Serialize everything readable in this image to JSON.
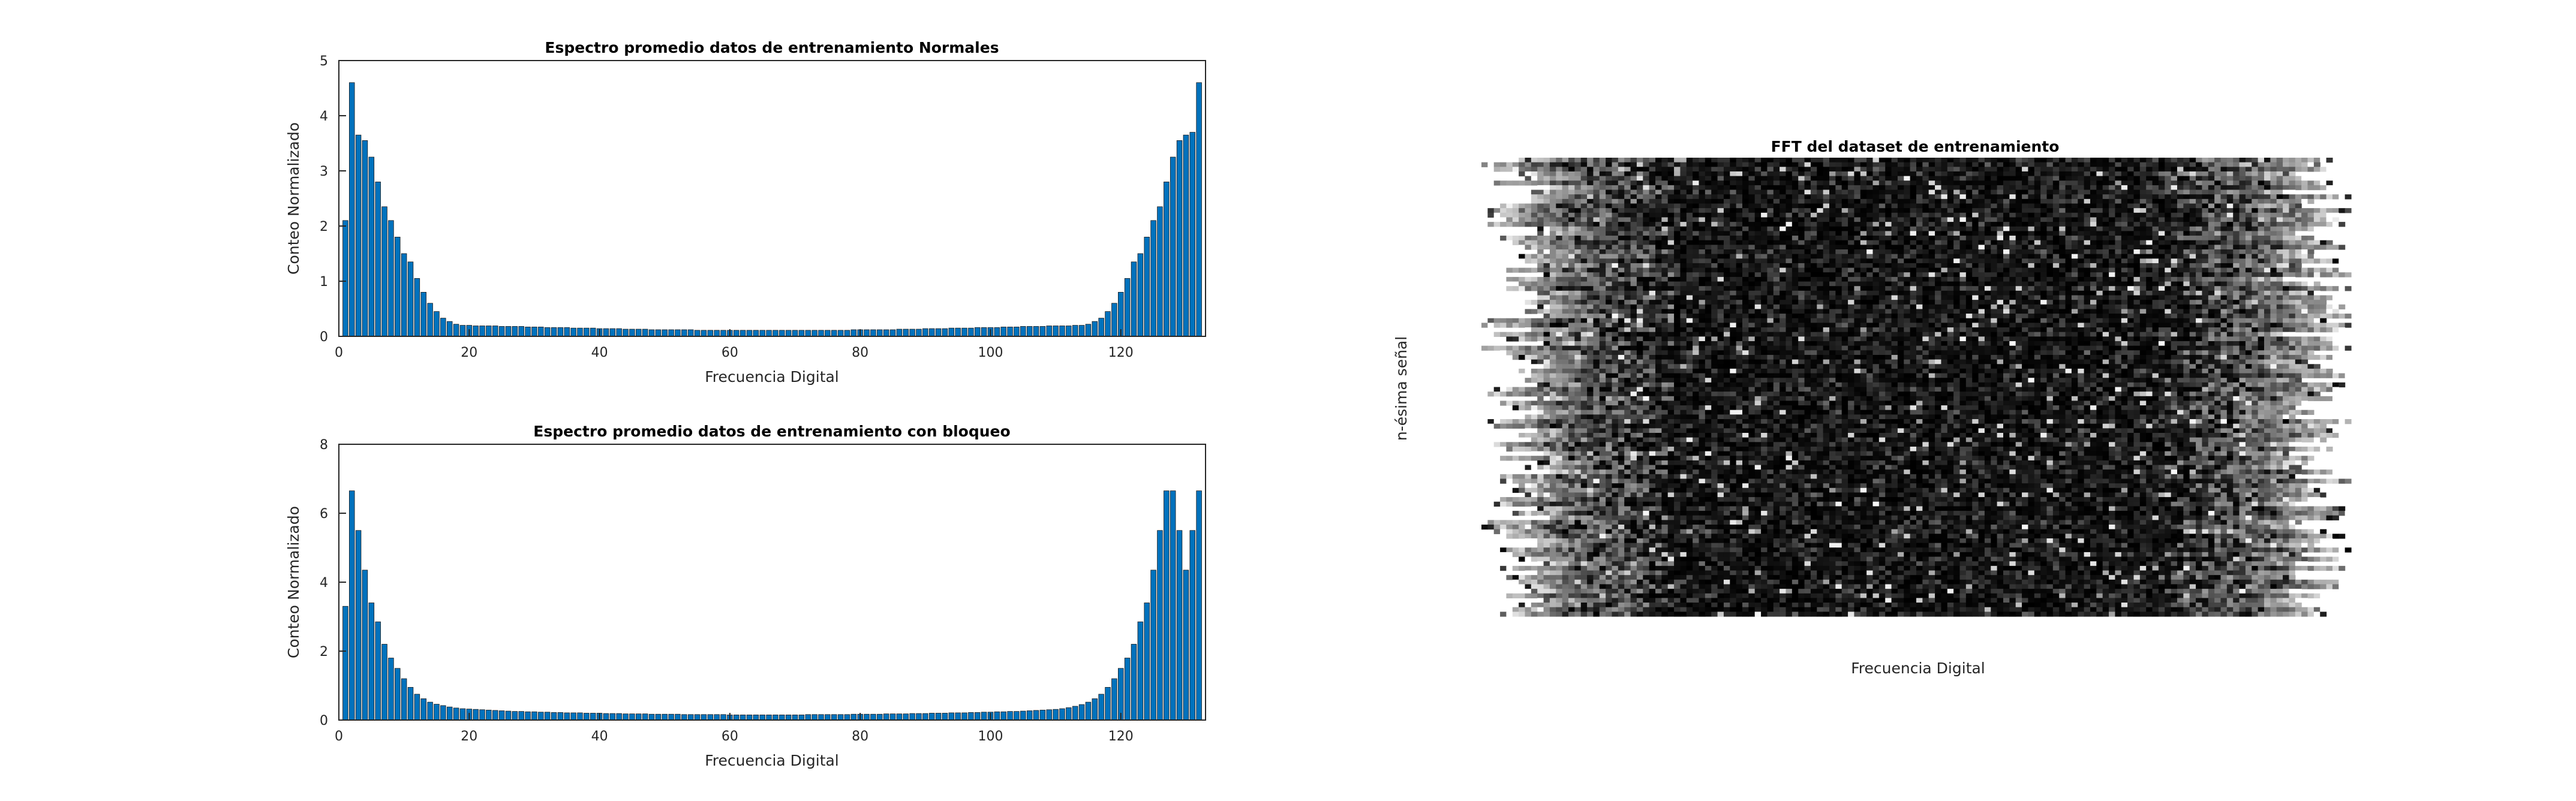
{
  "chart_data": [
    {
      "type": "bar",
      "title": "Espectro promedio datos de entrenamiento Normales",
      "xlabel": "Frecuencia Digital",
      "ylabel": "Conteo Normalizado",
      "xlim": [
        0,
        133
      ],
      "ylim": [
        0,
        5
      ],
      "xticks": [
        0,
        20,
        40,
        60,
        80,
        100,
        120
      ],
      "yticks": [
        0,
        1,
        2,
        3,
        4,
        5
      ],
      "bar_color": "#0072BD",
      "x": [
        1,
        2,
        3,
        4,
        5,
        6,
        7,
        8,
        9,
        10,
        11,
        12,
        13,
        14,
        15,
        16,
        17,
        18,
        19,
        20,
        21,
        22,
        23,
        24,
        25,
        26,
        27,
        28,
        29,
        30,
        31,
        32,
        33,
        34,
        35,
        36,
        37,
        38,
        39,
        40,
        41,
        42,
        43,
        44,
        45,
        46,
        47,
        48,
        49,
        50,
        51,
        52,
        53,
        54,
        55,
        56,
        57,
        58,
        59,
        60,
        61,
        62,
        63,
        64,
        65,
        66,
        67,
        68,
        69,
        70,
        71,
        72,
        73,
        74,
        75,
        76,
        77,
        78,
        79,
        80,
        81,
        82,
        83,
        84,
        85,
        86,
        87,
        88,
        89,
        90,
        91,
        92,
        93,
        94,
        95,
        96,
        97,
        98,
        99,
        100,
        101,
        102,
        103,
        104,
        105,
        106,
        107,
        108,
        109,
        110,
        111,
        112,
        113,
        114,
        115,
        116,
        117,
        118,
        119,
        120,
        121,
        122,
        123,
        124,
        125,
        126,
        127,
        128,
        129,
        130,
        131,
        132
      ],
      "values": [
        2.1,
        4.6,
        3.65,
        3.55,
        3.25,
        2.8,
        2.35,
        2.1,
        1.8,
        1.5,
        1.35,
        1.05,
        0.8,
        0.6,
        0.45,
        0.33,
        0.27,
        0.22,
        0.2,
        0.2,
        0.19,
        0.19,
        0.19,
        0.19,
        0.18,
        0.18,
        0.18,
        0.18,
        0.17,
        0.17,
        0.17,
        0.16,
        0.16,
        0.16,
        0.16,
        0.15,
        0.15,
        0.15,
        0.15,
        0.14,
        0.14,
        0.14,
        0.14,
        0.13,
        0.13,
        0.13,
        0.13,
        0.12,
        0.12,
        0.12,
        0.12,
        0.12,
        0.12,
        0.12,
        0.11,
        0.11,
        0.11,
        0.11,
        0.11,
        0.11,
        0.11,
        0.11,
        0.11,
        0.11,
        0.11,
        0.11,
        0.11,
        0.11,
        0.11,
        0.11,
        0.11,
        0.11,
        0.11,
        0.11,
        0.11,
        0.11,
        0.11,
        0.11,
        0.12,
        0.12,
        0.12,
        0.12,
        0.12,
        0.12,
        0.12,
        0.13,
        0.13,
        0.13,
        0.13,
        0.14,
        0.14,
        0.14,
        0.14,
        0.15,
        0.15,
        0.15,
        0.15,
        0.16,
        0.16,
        0.16,
        0.16,
        0.17,
        0.17,
        0.17,
        0.18,
        0.18,
        0.18,
        0.18,
        0.19,
        0.19,
        0.19,
        0.19,
        0.2,
        0.2,
        0.22,
        0.27,
        0.33,
        0.45,
        0.6,
        0.8,
        1.05,
        1.35,
        1.5,
        1.8,
        2.1,
        2.35,
        2.8,
        3.25,
        3.55,
        3.65,
        3.7,
        4.6
      ]
    },
    {
      "type": "bar",
      "title": "Espectro promedio datos de entrenamiento con bloqueo",
      "xlabel": "Frecuencia Digital",
      "ylabel": "Conteo Normalizado",
      "xlim": [
        0,
        133
      ],
      "ylim": [
        0,
        8
      ],
      "xticks": [
        0,
        20,
        40,
        60,
        80,
        100,
        120
      ],
      "yticks": [
        0,
        2,
        4,
        6,
        8
      ],
      "bar_color": "#0072BD",
      "x": [
        1,
        2,
        3,
        4,
        5,
        6,
        7,
        8,
        9,
        10,
        11,
        12,
        13,
        14,
        15,
        16,
        17,
        18,
        19,
        20,
        21,
        22,
        23,
        24,
        25,
        26,
        27,
        28,
        29,
        30,
        31,
        32,
        33,
        34,
        35,
        36,
        37,
        38,
        39,
        40,
        41,
        42,
        43,
        44,
        45,
        46,
        47,
        48,
        49,
        50,
        51,
        52,
        53,
        54,
        55,
        56,
        57,
        58,
        59,
        60,
        61,
        62,
        63,
        64,
        65,
        66,
        67,
        68,
        69,
        70,
        71,
        72,
        73,
        74,
        75,
        76,
        77,
        78,
        79,
        80,
        81,
        82,
        83,
        84,
        85,
        86,
        87,
        88,
        89,
        90,
        91,
        92,
        93,
        94,
        95,
        96,
        97,
        98,
        99,
        100,
        101,
        102,
        103,
        104,
        105,
        106,
        107,
        108,
        109,
        110,
        111,
        112,
        113,
        114,
        115,
        116,
        117,
        118,
        119,
        120,
        121,
        122,
        123,
        124,
        125,
        126,
        127,
        128,
        129,
        130,
        131,
        132
      ],
      "values": [
        3.3,
        6.65,
        5.5,
        4.35,
        3.4,
        2.85,
        2.2,
        1.8,
        1.5,
        1.2,
        0.95,
        0.75,
        0.62,
        0.52,
        0.46,
        0.42,
        0.38,
        0.35,
        0.33,
        0.32,
        0.31,
        0.3,
        0.29,
        0.28,
        0.27,
        0.26,
        0.25,
        0.25,
        0.24,
        0.24,
        0.23,
        0.23,
        0.22,
        0.22,
        0.21,
        0.21,
        0.21,
        0.2,
        0.2,
        0.2,
        0.19,
        0.19,
        0.19,
        0.18,
        0.18,
        0.18,
        0.18,
        0.17,
        0.17,
        0.17,
        0.17,
        0.17,
        0.16,
        0.16,
        0.16,
        0.16,
        0.16,
        0.16,
        0.16,
        0.15,
        0.15,
        0.15,
        0.15,
        0.15,
        0.15,
        0.15,
        0.15,
        0.15,
        0.15,
        0.15,
        0.15,
        0.16,
        0.16,
        0.16,
        0.16,
        0.16,
        0.16,
        0.16,
        0.17,
        0.17,
        0.17,
        0.17,
        0.17,
        0.18,
        0.18,
        0.18,
        0.18,
        0.19,
        0.19,
        0.19,
        0.2,
        0.2,
        0.2,
        0.21,
        0.21,
        0.21,
        0.22,
        0.22,
        0.23,
        0.23,
        0.24,
        0.24,
        0.25,
        0.25,
        0.26,
        0.27,
        0.28,
        0.29,
        0.3,
        0.31,
        0.33,
        0.36,
        0.4,
        0.45,
        0.52,
        0.62,
        0.75,
        0.95,
        1.2,
        1.5,
        1.8,
        2.2,
        2.85,
        3.4,
        4.35,
        5.5,
        6.65,
        6.65,
        5.5,
        4.35,
        5.5,
        6.65
      ]
    },
    {
      "type": "heatmap",
      "title": "FFT del dataset de entrenamiento",
      "xlabel": "Frecuencia Digital",
      "ylabel": "n-ésima señal",
      "colormap": "gray",
      "colors": {
        "low": "#000000",
        "high": "#ffffff"
      },
      "description_rows": 100,
      "description_cols": 140
    }
  ]
}
